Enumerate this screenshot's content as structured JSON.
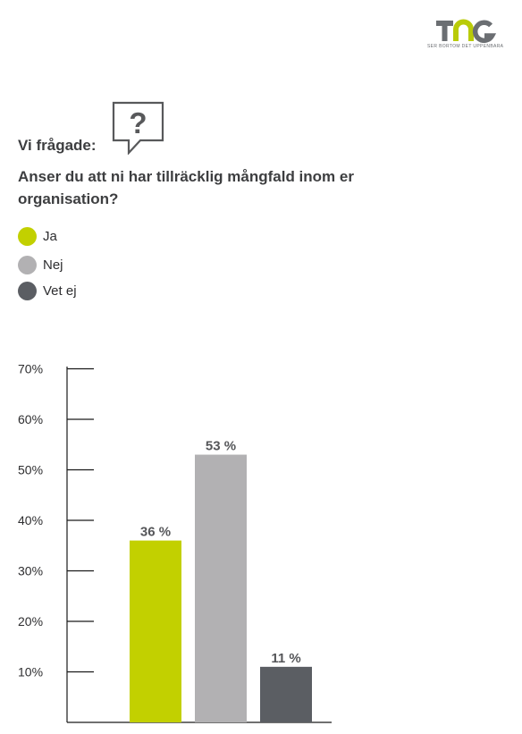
{
  "brand": {
    "name": "TNG",
    "tagline": "SER BORTOM DET UPPENBARA",
    "colors": {
      "dark": "#6b6e72",
      "green": "#b9cb08"
    }
  },
  "header": {
    "icon": "speech-bubble-question-icon",
    "asked": "Vi frågade:",
    "question": "Anser du att ni har tillräcklig mångfald inom er organisation?"
  },
  "legend": [
    {
      "label": "Ja",
      "color": "#c2d000"
    },
    {
      "label": "Nej",
      "color": "#b2b1b3"
    },
    {
      "label": "Vet ej",
      "color": "#5b5e63"
    }
  ],
  "chart_data": {
    "type": "bar",
    "categories": [
      "Ja",
      "Nej",
      "Vet ej"
    ],
    "values": [
      36,
      53,
      11
    ],
    "value_labels": [
      "36 %",
      "53 %",
      "11 %"
    ],
    "colors": [
      "#c2d000",
      "#b2b1b3",
      "#5b5e63"
    ],
    "yticks": [
      "10%",
      "20%",
      "30%",
      "40%",
      "50%",
      "60%",
      "70%"
    ],
    "ylim": [
      0,
      70
    ],
    "xlabel": "",
    "ylabel": "",
    "grid": false,
    "legend_position": "top-left"
  }
}
